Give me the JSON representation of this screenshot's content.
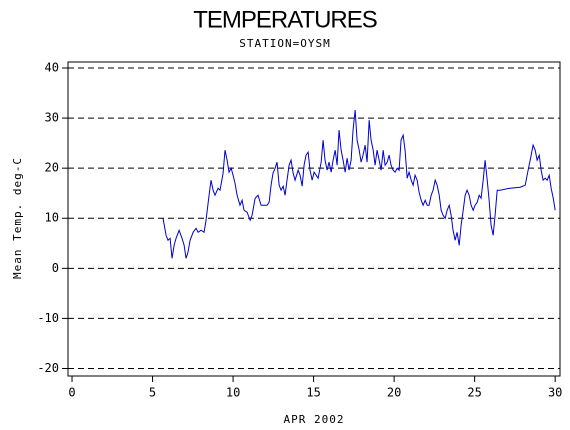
{
  "chart_data": {
    "type": "line",
    "title": "TEMPERATURES",
    "subtitle": "STATION=OYSM",
    "x_label": "APR 2002",
    "y_label": "Mean Temp. deg-C",
    "xlim": [
      -0.25,
      30.3
    ],
    "xticks": [
      0,
      5,
      10,
      15,
      20,
      25,
      30
    ],
    "ylim": [
      -21.5,
      41.2
    ],
    "yticks": [
      -20,
      -10,
      0,
      10,
      20,
      30,
      40
    ],
    "grid": true,
    "x": [
      5.65,
      5.84,
      5.96,
      6.09,
      6.21,
      6.34,
      6.46,
      6.65,
      6.83,
      6.96,
      7.08,
      7.2,
      7.33,
      7.52,
      7.7,
      7.83,
      8.01,
      8.2,
      8.32,
      8.51,
      8.63,
      8.76,
      8.88,
      9.07,
      9.19,
      9.38,
      9.5,
      9.63,
      9.75,
      9.88,
      10,
      10.12,
      10.25,
      10.43,
      10.56,
      10.68,
      10.87,
      11.06,
      11.18,
      11.37,
      11.55,
      11.74,
      11.93,
      12.11,
      12.24,
      12.36,
      12.48,
      12.61,
      12.73,
      12.86,
      12.98,
      13.11,
      13.23,
      13.35,
      13.48,
      13.6,
      13.73,
      13.85,
      14.04,
      14.16,
      14.29,
      14.41,
      14.53,
      14.66,
      14.78,
      14.91,
      15.03,
      15.16,
      15.28,
      15.47,
      15.59,
      15.71,
      15.84,
      15.96,
      16.09,
      16.21,
      16.34,
      16.46,
      16.58,
      16.71,
      16.83,
      16.96,
      17.08,
      17.2,
      17.33,
      17.45,
      17.58,
      17.7,
      17.83,
      17.95,
      18.07,
      18.2,
      18.32,
      18.45,
      18.57,
      18.7,
      18.82,
      18.94,
      19.07,
      19.19,
      19.32,
      19.44,
      19.57,
      19.69,
      19.81,
      19.94,
      20.06,
      20.19,
      20.31,
      20.43,
      20.56,
      20.68,
      20.81,
      20.93,
      21.06,
      21.18,
      21.3,
      21.43,
      21.55,
      21.68,
      21.8,
      21.93,
      22.05,
      22.17,
      22.3,
      22.42,
      22.55,
      22.67,
      22.8,
      22.92,
      23.04,
      23.17,
      23.29,
      23.42,
      23.54,
      23.66,
      23.79,
      23.91,
      24.04,
      24.16,
      24.29,
      24.41,
      24.53,
      24.66,
      24.78,
      24.91,
      25.03,
      25.16,
      25.28,
      25.4,
      25.53,
      25.65,
      25.78,
      25.9,
      26.02,
      26.15,
      26.27,
      26.4,
      26.58,
      27.2,
      27.83,
      28.14,
      28.32,
      28.45,
      28.63,
      28.76,
      28.88,
      29.01,
      29.13,
      29.25,
      29.38,
      29.5,
      29.63,
      29.75,
      29.88,
      30
    ],
    "series": [
      {
        "color": "#0000cc",
        "values": [
          10,
          6.6,
          5.6,
          6,
          2,
          4.6,
          6,
          7.6,
          6,
          4.6,
          2,
          3.2,
          5.6,
          7.2,
          8,
          7.2,
          7.6,
          7.2,
          9.6,
          14.6,
          17.6,
          15.6,
          14.6,
          16,
          15.6,
          19,
          23.6,
          21.6,
          19.2,
          20,
          18.6,
          17,
          14.6,
          12.6,
          13.6,
          11.6,
          11.2,
          9.6,
          10.6,
          14,
          14.6,
          12.6,
          12.6,
          12.6,
          13.2,
          16.6,
          19,
          20,
          21.2,
          16.6,
          15.6,
          16.4,
          14.6,
          17.6,
          20.6,
          21.6,
          19,
          17.6,
          19.6,
          18.6,
          16.4,
          20.6,
          22.6,
          23.2,
          19.6,
          17.6,
          19.2,
          18.6,
          18,
          21.2,
          25.6,
          21.6,
          19.6,
          21.2,
          19.2,
          21.6,
          23.6,
          20.6,
          27.6,
          23.6,
          21.6,
          19.2,
          22,
          19.6,
          21.6,
          27.6,
          31.6,
          25.6,
          23.6,
          21.2,
          22.6,
          24.6,
          21.2,
          29.6,
          25.6,
          23.6,
          20.6,
          23.6,
          21.6,
          19.6,
          23.6,
          20.6,
          21.2,
          22.6,
          20.6,
          19.6,
          19.2,
          20,
          19.6,
          25.6,
          26.6,
          23.6,
          18,
          19.2,
          17.6,
          16.6,
          18.6,
          17.6,
          15.2,
          13.6,
          12.6,
          13.6,
          12.6,
          12.6,
          14.6,
          15.6,
          17.6,
          16.6,
          14.6,
          11.6,
          10.6,
          10,
          11.6,
          12.6,
          10.6,
          7.6,
          5.6,
          7.2,
          4.6,
          8.6,
          11.6,
          14.6,
          15.6,
          14.6,
          12.6,
          11.6,
          12.6,
          13.2,
          14.6,
          14,
          17.6,
          21.6,
          17.6,
          13.6,
          8.6,
          6.6,
          10.6,
          15.6,
          15.6,
          16,
          16.2,
          16.6,
          19.6,
          21.6,
          24.6,
          23.6,
          21.6,
          22.6,
          19.6,
          17.6,
          18,
          17.6,
          18.6,
          16,
          14,
          11.6
        ]
      }
    ]
  }
}
